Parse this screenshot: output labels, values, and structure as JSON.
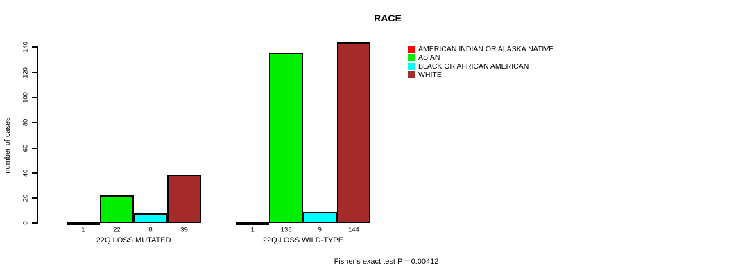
{
  "chart_data": {
    "type": "bar",
    "title": "RACE",
    "ylabel": "number of cases",
    "xlabel": "",
    "ylim": [
      0,
      140
    ],
    "yticks": [
      0,
      20,
      40,
      60,
      80,
      100,
      120,
      140
    ],
    "grid": false,
    "legend_position": "top-right",
    "bar_border_color": "#000000",
    "series": [
      {
        "name": "AMERICAN INDIAN OR ALASKA NATIVE",
        "color": "#FF0000"
      },
      {
        "name": "ASIAN",
        "color": "#00EE00"
      },
      {
        "name": "BLACK OR AFRICAN AMERICAN",
        "color": "#00FFFF"
      },
      {
        "name": "WHITE",
        "color": "#A52A2A"
      }
    ],
    "groups": [
      {
        "label": "22Q LOSS MUTATED",
        "values": [
          1,
          22,
          8,
          39
        ]
      },
      {
        "label": "22Q LOSS WILD-TYPE",
        "values": [
          1,
          136,
          9,
          144
        ]
      }
    ],
    "annotation": "Fisher's exact test P = 0.00412"
  }
}
